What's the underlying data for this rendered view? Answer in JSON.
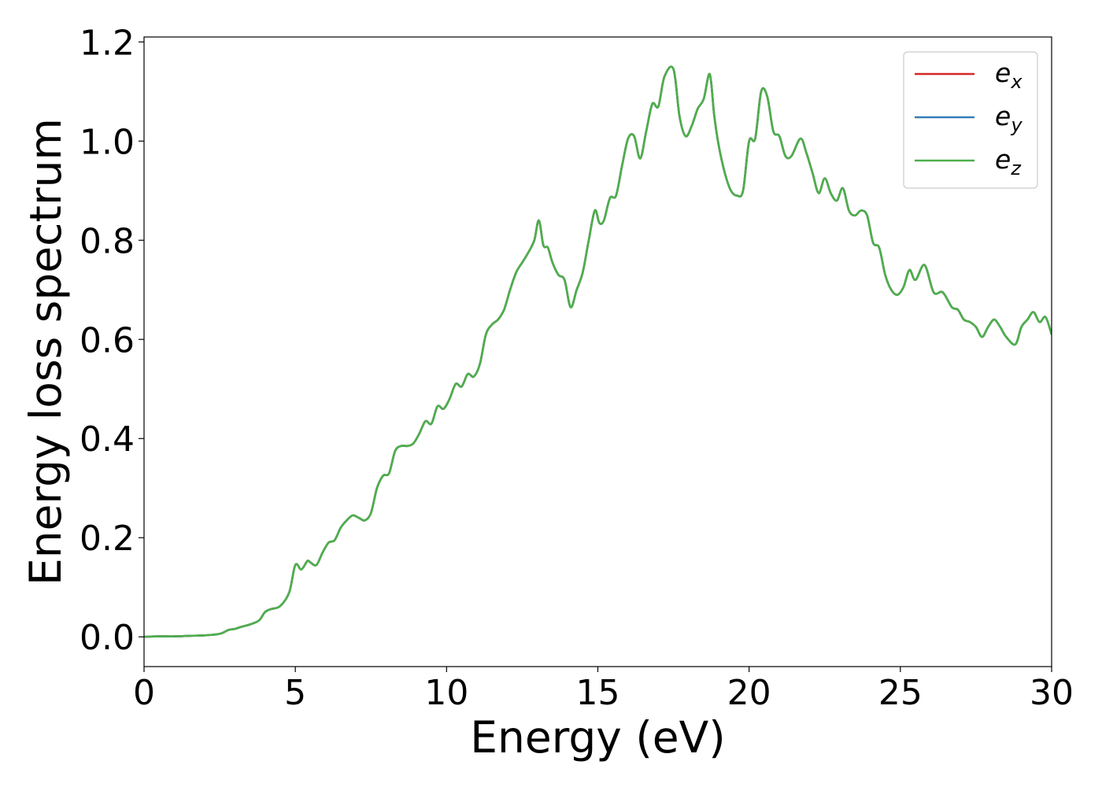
{
  "chart_data": {
    "type": "line",
    "title": "",
    "xlabel": "Energy (eV)",
    "ylabel": "Energy loss spectrum",
    "xlim": [
      0,
      30
    ],
    "ylim": [
      -0.06,
      1.21
    ],
    "xticks": [
      0,
      5,
      10,
      15,
      20,
      25,
      30
    ],
    "xtick_labels": [
      "0",
      "5",
      "10",
      "15",
      "20",
      "25",
      "30"
    ],
    "yticks": [
      0.0,
      0.2,
      0.4,
      0.6,
      0.8,
      1.0,
      1.2
    ],
    "ytick_labels": [
      "0.0",
      "0.2",
      "0.4",
      "0.6",
      "0.8",
      "1.0",
      "1.2"
    ],
    "grid": false,
    "legend_position": "top-right",
    "x": [
      0,
      0.5,
      1,
      1.5,
      2,
      2.5,
      2.8,
      3,
      3.2,
      3.5,
      3.8,
      4,
      4.2,
      4.5,
      4.8,
      5.0,
      5.2,
      5.4,
      5.5,
      5.7,
      5.9,
      6.1,
      6.3,
      6.5,
      6.7,
      6.9,
      7.1,
      7.3,
      7.5,
      7.7,
      7.9,
      8.1,
      8.3,
      8.5,
      8.7,
      8.9,
      9.1,
      9.3,
      9.5,
      9.7,
      9.9,
      10.1,
      10.3,
      10.5,
      10.7,
      10.9,
      11.1,
      11.3,
      11.5,
      11.7,
      11.9,
      12.1,
      12.3,
      12.5,
      12.7,
      12.9,
      13.05,
      13.2,
      13.35,
      13.5,
      13.7,
      13.9,
      14.1,
      14.3,
      14.5,
      14.7,
      14.9,
      15.05,
      15.2,
      15.4,
      15.6,
      15.8,
      16.0,
      16.2,
      16.4,
      16.6,
      16.8,
      17.0,
      17.2,
      17.5,
      17.7,
      17.9,
      18.1,
      18.3,
      18.5,
      18.7,
      18.85,
      19.0,
      19.2,
      19.4,
      19.6,
      19.8,
      20.0,
      20.2,
      20.4,
      20.6,
      20.8,
      21.0,
      21.2,
      21.4,
      21.7,
      21.9,
      22.1,
      22.3,
      22.5,
      22.7,
      22.9,
      23.1,
      23.3,
      23.5,
      23.7,
      23.9,
      24.1,
      24.3,
      24.5,
      24.7,
      24.9,
      25.1,
      25.3,
      25.5,
      25.8,
      26.1,
      26.4,
      26.7,
      26.9,
      27.1,
      27.3,
      27.5,
      27.7,
      27.9,
      28.1,
      28.3,
      28.5,
      28.8,
      29.0,
      29.2,
      29.4,
      29.6,
      29.8,
      30.0
    ],
    "y": [
      0.0,
      0.001,
      0.001,
      0.002,
      0.003,
      0.006,
      0.014,
      0.016,
      0.02,
      0.025,
      0.033,
      0.05,
      0.056,
      0.062,
      0.09,
      0.145,
      0.136,
      0.153,
      0.15,
      0.145,
      0.17,
      0.19,
      0.195,
      0.22,
      0.235,
      0.245,
      0.24,
      0.235,
      0.25,
      0.3,
      0.325,
      0.33,
      0.375,
      0.385,
      0.385,
      0.39,
      0.41,
      0.435,
      0.43,
      0.465,
      0.46,
      0.48,
      0.51,
      0.505,
      0.53,
      0.525,
      0.55,
      0.61,
      0.63,
      0.64,
      0.66,
      0.7,
      0.735,
      0.755,
      0.775,
      0.8,
      0.84,
      0.79,
      0.785,
      0.755,
      0.73,
      0.72,
      0.665,
      0.7,
      0.735,
      0.8,
      0.86,
      0.835,
      0.84,
      0.885,
      0.89,
      0.95,
      1.005,
      1.01,
      0.965,
      1.02,
      1.075,
      1.07,
      1.13,
      1.145,
      1.05,
      1.01,
      1.03,
      1.065,
      1.085,
      1.135,
      1.05,
      0.99,
      0.935,
      0.9,
      0.89,
      0.9,
      1.0,
      1.005,
      1.1,
      1.09,
      1.02,
      1.01,
      0.97,
      0.97,
      1.005,
      0.975,
      0.935,
      0.895,
      0.925,
      0.895,
      0.88,
      0.905,
      0.86,
      0.85,
      0.86,
      0.85,
      0.795,
      0.785,
      0.73,
      0.7,
      0.69,
      0.705,
      0.74,
      0.72,
      0.75,
      0.695,
      0.695,
      0.665,
      0.66,
      0.64,
      0.635,
      0.625,
      0.605,
      0.625,
      0.64,
      0.625,
      0.605,
      0.59,
      0.625,
      0.64,
      0.655,
      0.635,
      0.645,
      0.61
    ],
    "series": [
      {
        "name": "e_x",
        "label_base": "e",
        "label_sub": "x",
        "color": "#d62728"
      },
      {
        "name": "e_y",
        "label_base": "e",
        "label_sub": "y",
        "color": "#377eb8"
      },
      {
        "name": "e_z",
        "label_base": "e",
        "label_sub": "z",
        "color": "#4daf4a"
      }
    ]
  }
}
